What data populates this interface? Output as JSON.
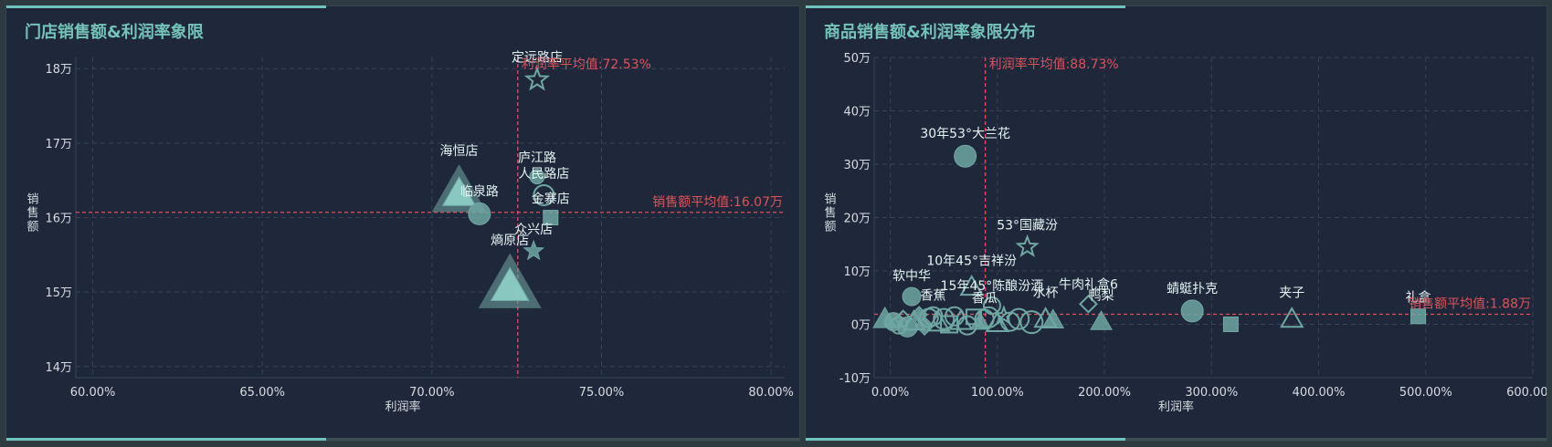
{
  "chart_data": [
    {
      "type": "scatter",
      "title": "门店销售额&利润率象限",
      "xlabel": "利润率",
      "ylabel": "销售额",
      "x_ticks": [
        "60.00%",
        "65.00%",
        "70.00%",
        "75.00%",
        "80.00%"
      ],
      "y_ticks": [
        "14万",
        "15万",
        "16万",
        "17万",
        "18万"
      ],
      "xlim": [
        59.5,
        80.4
      ],
      "ylim": [
        13.85,
        18.15
      ],
      "grid": true,
      "marker_color": "#6fa7a3",
      "avg_line_color": "#e0525a",
      "avg_x": 72.53,
      "avg_y": 16.07,
      "avg_x_label": "利润率平均值:72.53%",
      "avg_y_label": "销售额平均值:16.07万",
      "points": [
        {
          "name": "定远路店",
          "x": 73.1,
          "y": 17.85,
          "shape": "star-outline",
          "size": 12
        },
        {
          "name": "海恒店",
          "x": 70.8,
          "y": 16.35,
          "shape": "triangle",
          "size": 26
        },
        {
          "name": "临泉路",
          "x": 71.4,
          "y": 16.05,
          "shape": "circle",
          "size": 12
        },
        {
          "name": "庐江路",
          "x": 73.1,
          "y": 16.55,
          "shape": "circle",
          "size": 8
        },
        {
          "name": "人民路店",
          "x": 73.3,
          "y": 16.3,
          "shape": "circle-outline",
          "size": 11
        },
        {
          "name": "金寨店",
          "x": 73.5,
          "y": 16.0,
          "shape": "square",
          "size": 8
        },
        {
          "name": "众兴店",
          "x": 73.0,
          "y": 15.55,
          "shape": "star",
          "size": 11
        },
        {
          "name": "熵原店",
          "x": 72.3,
          "y": 15.1,
          "shape": "triangle",
          "size": 30
        }
      ]
    },
    {
      "type": "scatter",
      "title": "商品销售额&利润率象限分布",
      "xlabel": "利润率",
      "ylabel": "销售额",
      "x_ticks": [
        "0.00%",
        "100.00%",
        "200.00%",
        "300.00%",
        "400.00%",
        "500.00%",
        "600.00%"
      ],
      "y_ticks": [
        "-10万",
        "0万",
        "10万",
        "20万",
        "30万",
        "40万",
        "50万"
      ],
      "xlim": [
        -15,
        600
      ],
      "ylim": [
        -10,
        50
      ],
      "grid": true,
      "marker_color": "#6fa7a3",
      "avg_line_color": "#e0525a",
      "avg_x": 88.73,
      "avg_y": 1.88,
      "avg_x_label": "利润率平均值:88.73%",
      "avg_y_label": "销售额平均值:1.88万",
      "points": [
        {
          "name": "30年53°大兰花",
          "x": 70,
          "y": 31.5,
          "shape": "circle",
          "size": 12
        },
        {
          "name": "53°国藏汾",
          "x": 128,
          "y": 14.5,
          "shape": "star-outline",
          "size": 11
        },
        {
          "name": "10年45°吉祥汾",
          "x": 76,
          "y": 7,
          "shape": "triangle-outline",
          "size": 10
        },
        {
          "name": "软中华",
          "x": 20,
          "y": 5.2,
          "shape": "circle",
          "size": 10
        },
        {
          "name": "15年45°陈酿汾酒",
          "x": 95,
          "y": 3.5,
          "shape": "circle-outline",
          "size": 9
        },
        {
          "name": "牛肉礼盒6",
          "x": 185,
          "y": 3.8,
          "shape": "diamond-outline",
          "size": 9
        },
        {
          "name": "香蕉",
          "x": 40,
          "y": 1.5,
          "shape": "circle-outline",
          "size": 10
        },
        {
          "name": "香瓜",
          "x": 88,
          "y": 1.0,
          "shape": "circle-outline",
          "size": 10
        },
        {
          "name": "水杯",
          "x": 145,
          "y": 1.0,
          "shape": "triangle-outline",
          "size": 10
        },
        {
          "name": "鸭梨",
          "x": 197,
          "y": 0.5,
          "shape": "triangle",
          "size": 10
        },
        {
          "name": "蜻蜓扑克",
          "x": 282,
          "y": 2.5,
          "shape": "circle",
          "size": 12
        },
        {
          "name": "夹子",
          "x": 375,
          "y": 1.0,
          "shape": "triangle-outline",
          "size": 10
        },
        {
          "name": "礼盒",
          "x": 493,
          "y": 1.5,
          "shape": "square",
          "size": 8
        },
        {
          "name": "",
          "x": 318,
          "y": 0,
          "shape": "square",
          "size": 8
        },
        {
          "name": "",
          "x": -5,
          "y": 1,
          "shape": "triangle",
          "size": 11
        },
        {
          "name": "",
          "x": 3,
          "y": 0.5,
          "shape": "circle",
          "size": 10
        },
        {
          "name": "",
          "x": 8,
          "y": -0.2,
          "shape": "circle-outline",
          "size": 9
        },
        {
          "name": "",
          "x": 12,
          "y": 1.0,
          "shape": "diamond-outline",
          "size": 9
        },
        {
          "name": "",
          "x": 16,
          "y": -0.5,
          "shape": "circle",
          "size": 11
        },
        {
          "name": "",
          "x": 22,
          "y": 0.5,
          "shape": "triangle-outline",
          "size": 10
        },
        {
          "name": "",
          "x": 27,
          "y": 1.8,
          "shape": "diamond",
          "size": 9
        },
        {
          "name": "",
          "x": 32,
          "y": -0.3,
          "shape": "diamond",
          "size": 10
        },
        {
          "name": "",
          "x": 36,
          "y": 1.2,
          "shape": "circle-outline",
          "size": 10
        },
        {
          "name": "",
          "x": 45,
          "y": 0.3,
          "shape": "triangle-outline",
          "size": 10
        },
        {
          "name": "",
          "x": 50,
          "y": 1.0,
          "shape": "circle-outline",
          "size": 11
        },
        {
          "name": "",
          "x": 55,
          "y": 0.0,
          "shape": "square-outline",
          "size": 9
        },
        {
          "name": "",
          "x": 60,
          "y": 1.5,
          "shape": "circle-outline",
          "size": 10
        },
        {
          "name": "",
          "x": 66,
          "y": 0.6,
          "shape": "triangle-outline",
          "size": 10
        },
        {
          "name": "",
          "x": 72,
          "y": -0.2,
          "shape": "circle-outline",
          "size": 10
        },
        {
          "name": "",
          "x": 78,
          "y": 1.4,
          "shape": "square-outline",
          "size": 8
        },
        {
          "name": "",
          "x": 84,
          "y": 0.4,
          "shape": "triangle",
          "size": 9
        },
        {
          "name": "",
          "x": 92,
          "y": 1.3,
          "shape": "circle-outline",
          "size": 11
        },
        {
          "name": "",
          "x": 100,
          "y": 0.2,
          "shape": "triangle-outline",
          "size": 10
        },
        {
          "name": "",
          "x": 106,
          "y": 1.6,
          "shape": "star-outline",
          "size": 9
        },
        {
          "name": "",
          "x": 112,
          "y": 0.5,
          "shape": "circle-outline",
          "size": 10
        },
        {
          "name": "",
          "x": 120,
          "y": 1.0,
          "shape": "circle-outline",
          "size": 11
        },
        {
          "name": "",
          "x": 132,
          "y": 0.4,
          "shape": "circle-outline",
          "size": 12
        },
        {
          "name": "",
          "x": 152,
          "y": 0.8,
          "shape": "triangle",
          "size": 10
        }
      ]
    }
  ]
}
